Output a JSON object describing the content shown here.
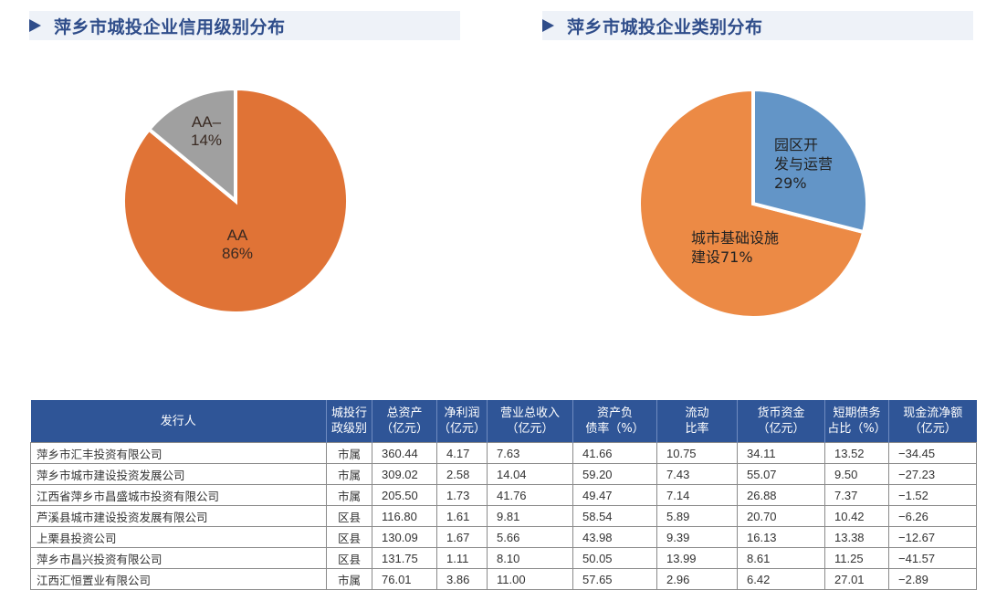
{
  "titles": {
    "left": "萍乡市城投企业信用级别分布",
    "right": "萍乡市城投企业类别分布"
  },
  "colors": {
    "title_text": "#2f4d8a",
    "title_bg": "#eef2f8",
    "orange": "#e07336",
    "gray": "#a0a0a0",
    "blue": "#6395c7",
    "orange2": "#ec8a45",
    "table_header": "#2f5597"
  },
  "chart_data": [
    {
      "type": "pie",
      "title": "萍乡市城投企业信用级别分布",
      "categories": [
        "AA-",
        "AA"
      ],
      "values": [
        14,
        86
      ],
      "labels": [
        {
          "line1": "AA–",
          "line2": "14%"
        },
        {
          "line1": "AA",
          "line2": "86%"
        }
      ],
      "colors": [
        "#a0a0a0",
        "#e07336"
      ],
      "unit": "%"
    },
    {
      "type": "pie",
      "title": "萍乡市城投企业类别分布",
      "categories": [
        "园区开发与运营",
        "城市基础设施建设"
      ],
      "values": [
        29,
        71
      ],
      "labels": [
        {
          "line1": "园区开",
          "line2": "发与运营",
          "line3": "29%"
        },
        {
          "line1": "城市基础设施",
          "line2": "建设71%"
        }
      ],
      "colors": [
        "#6395c7",
        "#ec8a45"
      ],
      "unit": "%"
    },
    {
      "type": "table",
      "columns": [
        "发行人",
        "城投行政级别",
        "总资产（亿元）",
        "净利润（亿元）",
        "营业总收入（亿元）",
        "资产负债率（%）",
        "流动比率",
        "货币资金（亿元）",
        "短期债务占比（%）",
        "现金流净额（亿元）"
      ],
      "rows": [
        [
          "萍乡市汇丰投资有限公司",
          "市属",
          360.44,
          4.17,
          7.63,
          41.66,
          10.75,
          34.11,
          13.52,
          -34.45
        ],
        [
          "萍乡市城市建设投资发展公司",
          "市属",
          309.02,
          2.58,
          14.04,
          59.2,
          7.43,
          55.07,
          9.5,
          -27.23
        ],
        [
          "江西省萍乡市昌盛城市投资有限公司",
          "市属",
          205.5,
          1.73,
          41.76,
          49.47,
          7.14,
          26.88,
          7.37,
          -1.52
        ],
        [
          "芦溪县城市建设投资发展有限公司",
          "区县",
          116.8,
          1.61,
          9.81,
          58.54,
          5.89,
          20.7,
          10.42,
          -6.26
        ],
        [
          "上栗县投资公司",
          "区县",
          130.09,
          1.67,
          5.66,
          43.98,
          9.39,
          16.13,
          13.38,
          -12.67
        ],
        [
          "萍乡市昌兴投资有限公司",
          "区县",
          131.75,
          1.11,
          8.1,
          50.05,
          13.99,
          8.61,
          11.25,
          -41.57
        ],
        [
          "江西汇恒置业有限公司",
          "市属",
          76.01,
          3.86,
          11.0,
          57.65,
          2.96,
          6.42,
          27.01,
          -2.89
        ]
      ]
    }
  ],
  "table": {
    "headers": [
      {
        "l1": "发行人",
        "l2": ""
      },
      {
        "l1": "城投行",
        "l2": "政级别"
      },
      {
        "l1": "总资产",
        "l2": "（亿元）"
      },
      {
        "l1": "净利润",
        "l2": "（亿元）"
      },
      {
        "l1": "营业总收入",
        "l2": "（亿元）"
      },
      {
        "l1": "资产负",
        "l2": "债率（%）"
      },
      {
        "l1": "流动",
        "l2": "比率"
      },
      {
        "l1": "货币资金",
        "l2": "（亿元）"
      },
      {
        "l1": "短期债务",
        "l2": "占比（%）"
      },
      {
        "l1": "现金流净额",
        "l2": "（亿元）"
      }
    ],
    "rows": [
      [
        "萍乡市汇丰投资有限公司",
        "市属",
        "360.44",
        "4.17",
        "7.63",
        "41.66",
        "10.75",
        "34.11",
        "13.52",
        "−34.45"
      ],
      [
        "萍乡市城市建设投资发展公司",
        "市属",
        "309.02",
        "2.58",
        "14.04",
        "59.20",
        "7.43",
        "55.07",
        "9.50",
        "−27.23"
      ],
      [
        "江西省萍乡市昌盛城市投资有限公司",
        "市属",
        "205.50",
        "1.73",
        "41.76",
        "49.47",
        "7.14",
        "26.88",
        "7.37",
        "−1.52"
      ],
      [
        "芦溪县城市建设投资发展有限公司",
        "区县",
        "116.80",
        "1.61",
        "9.81",
        "58.54",
        "5.89",
        "20.70",
        "10.42",
        "−6.26"
      ],
      [
        "上栗县投资公司",
        "区县",
        "130.09",
        "1.67",
        "5.66",
        "43.98",
        "9.39",
        "16.13",
        "13.38",
        "−12.67"
      ],
      [
        "萍乡市昌兴投资有限公司",
        "区县",
        "131.75",
        "1.11",
        "8.10",
        "50.05",
        "13.99",
        "8.61",
        "11.25",
        "−41.57"
      ],
      [
        "江西汇恒置业有限公司",
        "市属",
        "76.01",
        "3.86",
        "11.00",
        "57.65",
        "2.96",
        "6.42",
        "27.01",
        "−2.89"
      ]
    ]
  }
}
